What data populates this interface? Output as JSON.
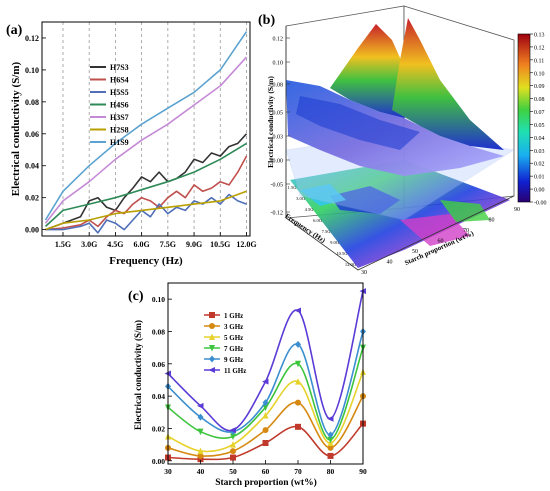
{
  "panels": {
    "a": {
      "label": "(a)"
    },
    "b": {
      "label": "(b)"
    },
    "c": {
      "label": "(c)"
    }
  },
  "chart_data": [
    {
      "panel": "a",
      "type": "line",
      "title": "",
      "xlabel": "Frequency (Hz)",
      "ylabel": "Electrical conductivity (S/m)",
      "x_ticks": [
        "1.5G",
        "3.0G",
        "4.5G",
        "6.0G",
        "7.5G",
        "9.0G",
        "10.5G",
        "12.0G"
      ],
      "x_tick_values": [
        1.5,
        3.0,
        4.5,
        6.0,
        7.5,
        9.0,
        10.5,
        12.0
      ],
      "y_ticks": [
        "0.00",
        "0.02",
        "0.04",
        "0.06",
        "0.08",
        "0.10",
        "0.12"
      ],
      "xlim": [
        0.3,
        12.2
      ],
      "ylim": [
        -0.004,
        0.13
      ],
      "dashed_vlines": [
        1.5,
        3.0,
        4.5,
        6.0,
        7.5,
        9.0,
        10.5,
        12.0
      ],
      "legend_position": "upper-left",
      "series": [
        {
          "name": "H7S3",
          "color": "#333333",
          "x": [
            0.5,
            1.5,
            2.5,
            3.0,
            3.5,
            4.0,
            4.5,
            5.0,
            5.5,
            6.0,
            6.5,
            7.0,
            7.5,
            8.0,
            8.5,
            9.0,
            9.5,
            10.0,
            10.5,
            11.0,
            11.5,
            12.0
          ],
          "y": [
            0.0,
            0.004,
            0.008,
            0.018,
            0.02,
            0.014,
            0.012,
            0.02,
            0.026,
            0.033,
            0.03,
            0.036,
            0.03,
            0.032,
            0.036,
            0.044,
            0.042,
            0.048,
            0.046,
            0.052,
            0.054,
            0.06
          ]
        },
        {
          "name": "H6S4",
          "color": "#c0504d",
          "x": [
            0.5,
            1.5,
            2.5,
            3.0,
            3.5,
            4.0,
            4.5,
            5.0,
            5.5,
            6.0,
            6.5,
            7.0,
            7.5,
            8.0,
            8.5,
            9.0,
            9.5,
            10.0,
            10.5,
            11.0,
            11.5,
            12.0
          ],
          "y": [
            0.0,
            0.001,
            0.003,
            0.006,
            0.002,
            0.008,
            0.012,
            0.01,
            0.016,
            0.02,
            0.018,
            0.014,
            0.02,
            0.024,
            0.02,
            0.028,
            0.024,
            0.026,
            0.03,
            0.028,
            0.036,
            0.046
          ]
        },
        {
          "name": "H5S5",
          "color": "#4f6fb8",
          "x": [
            0.5,
            1.5,
            2.5,
            3.0,
            3.5,
            4.0,
            4.5,
            5.0,
            5.5,
            6.0,
            6.5,
            7.0,
            7.5,
            8.0,
            8.5,
            9.0,
            9.5,
            10.0,
            10.5,
            11.0,
            11.5,
            12.0
          ],
          "y": [
            0.0,
            0.0,
            0.002,
            0.004,
            -0.002,
            0.006,
            0.004,
            0.0,
            0.006,
            0.012,
            0.008,
            0.016,
            0.01,
            0.014,
            0.012,
            0.018,
            0.016,
            0.02,
            0.016,
            0.022,
            0.018,
            0.016
          ]
        },
        {
          "name": "H4S6",
          "color": "#2e8b57",
          "x": [
            0.5,
            1.5,
            3.0,
            4.5,
            6.0,
            7.5,
            9.0,
            10.5,
            12.0
          ],
          "y": [
            0.002,
            0.012,
            0.016,
            0.02,
            0.025,
            0.03,
            0.036,
            0.044,
            0.054
          ]
        },
        {
          "name": "H3S7",
          "color": "#c58ad6",
          "x": [
            0.5,
            1.5,
            3.0,
            4.5,
            6.0,
            7.5,
            9.0,
            10.5,
            12.0
          ],
          "y": [
            0.004,
            0.018,
            0.03,
            0.044,
            0.056,
            0.066,
            0.078,
            0.09,
            0.108
          ]
        },
        {
          "name": "H2S8",
          "color": "#b8a000",
          "x": [
            0.5,
            1.5,
            3.0,
            4.5,
            6.0,
            7.5,
            9.0,
            10.5,
            12.0
          ],
          "y": [
            0.0,
            0.004,
            0.006,
            0.01,
            0.012,
            0.014,
            0.016,
            0.018,
            0.024
          ]
        },
        {
          "name": "H1S9",
          "color": "#5ba3d0",
          "x": [
            0.5,
            1.5,
            3.0,
            4.5,
            6.0,
            7.5,
            9.0,
            10.5,
            12.0
          ],
          "y": [
            0.006,
            0.024,
            0.04,
            0.054,
            0.066,
            0.076,
            0.086,
            0.1,
            0.124
          ]
        }
      ]
    },
    {
      "panel": "b",
      "type": "heatmap",
      "title": "",
      "zlabel": "Electrical conductivity (S/m)",
      "xlabel": "Starch proportion (wt%)",
      "ylabel": "Frequency (Hz)",
      "z_ticks": [
        "0.12",
        "0.10",
        "0.08",
        "0.05",
        "0.03",
        "0.00",
        "-0.05",
        "-0.12"
      ],
      "colorbar_ticks": [
        "0.13",
        "0.12",
        "0.11",
        "0.10",
        "0.09",
        "0.08",
        "0.07",
        "0.05",
        "0.04",
        "0.03",
        "0.02",
        "0.01",
        "0.00",
        "-0.00"
      ],
      "colorbar_range": [
        -0.005,
        0.13
      ],
      "x_ticks": [
        "90",
        "80",
        "70",
        "60",
        "50",
        "40",
        "30"
      ],
      "y_ticks": [
        "12.0G",
        "10.5G",
        "9.0G",
        "7.5G",
        "6.0G",
        "4.5G",
        "3.0G",
        "1.5G"
      ]
    },
    {
      "panel": "c",
      "type": "line",
      "title": "",
      "xlabel": "Starch proportion (wt%)",
      "ylabel": "Electrical conductivity (S/m)",
      "x": [
        30,
        40,
        50,
        60,
        70,
        80,
        90
      ],
      "x_ticks": [
        "30",
        "40",
        "50",
        "60",
        "70",
        "80",
        "90"
      ],
      "y_ticks": [
        "0.00",
        "0.02",
        "0.04",
        "0.06",
        "0.08",
        "0.10"
      ],
      "xlim": [
        30,
        90
      ],
      "ylim": [
        -0.002,
        0.11
      ],
      "legend_position": "upper-left",
      "series": [
        {
          "name": "1 GHz",
          "color": "#c0392b",
          "marker": "square",
          "values": [
            0.002,
            0.001,
            0.002,
            0.011,
            0.021,
            0.003,
            0.023
          ]
        },
        {
          "name": "3 GHz",
          "color": "#d68910",
          "marker": "circle",
          "values": [
            0.008,
            0.003,
            0.006,
            0.019,
            0.036,
            0.008,
            0.04
          ]
        },
        {
          "name": "5 GHz",
          "color": "#e6d22a",
          "marker": "triangle-up",
          "values": [
            0.015,
            0.006,
            0.01,
            0.028,
            0.049,
            0.011,
            0.055
          ]
        },
        {
          "name": "7 GHz",
          "color": "#3cc43c",
          "marker": "triangle-down",
          "values": [
            0.033,
            0.018,
            0.015,
            0.033,
            0.06,
            0.013,
            0.07
          ]
        },
        {
          "name": "9 GHz",
          "color": "#3b8ed0",
          "marker": "diamond",
          "values": [
            0.046,
            0.027,
            0.018,
            0.036,
            0.072,
            0.016,
            0.08
          ]
        },
        {
          "name": "11 GHz",
          "color": "#5b3bd6",
          "marker": "triangle-left",
          "values": [
            0.054,
            0.034,
            0.019,
            0.049,
            0.093,
            0.026,
            0.105
          ]
        }
      ]
    }
  ]
}
